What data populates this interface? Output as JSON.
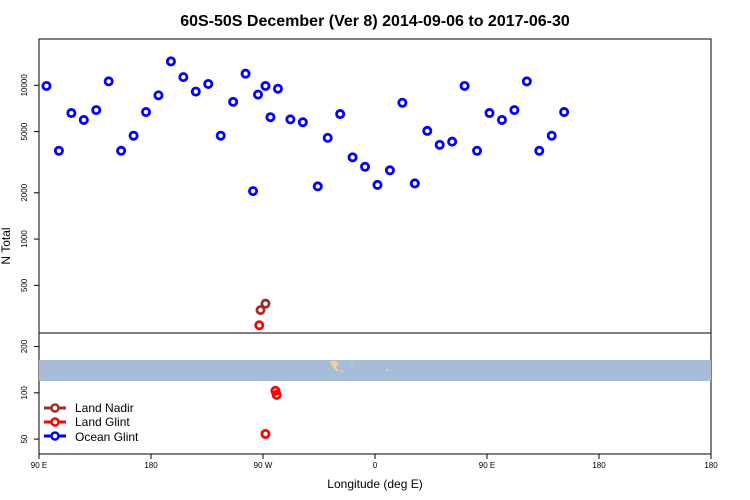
{
  "chart_data": {
    "type": "scatter",
    "title": "60S-50S December (Ver 8)   2014-09-06 to 2017-06-30",
    "xlabel": "Longitude (deg E)",
    "ylabel": "N Total",
    "xlim": [
      -90,
      180
    ],
    "ylim": [
      40,
      20000
    ],
    "y_scale": "log",
    "grid": false,
    "legend_position": "bottom-left",
    "x_ticks": [
      {
        "value": -90,
        "label": "90 E"
      },
      {
        "value": -45,
        "label": "180"
      },
      {
        "value": 0,
        "label": "90 W"
      },
      {
        "value": 45,
        "label": "0"
      },
      {
        "value": 90,
        "label": "90 E"
      },
      {
        "value": 135,
        "label": "180"
      }
    ],
    "y_ticks_upper": [
      {
        "value": 10000,
        "label": "10000"
      },
      {
        "value": 5000,
        "label": "5000"
      },
      {
        "value": 2000,
        "label": "2000"
      },
      {
        "value": 1000,
        "label": "1000"
      },
      {
        "value": 500,
        "label": "500"
      }
    ],
    "y_ticks_lower": [
      {
        "value": 200,
        "label": "200"
      },
      {
        "value": 100,
        "label": "100"
      },
      {
        "value": 50,
        "label": "50"
      }
    ],
    "series": [
      {
        "name": "Land Nadir",
        "color": "#a52a2a",
        "points": [
          {
            "x": -1,
            "y": 345
          },
          {
            "x": 1,
            "y": 380
          }
        ]
      },
      {
        "name": "Land Glint",
        "color": "#ff0000",
        "points": [
          {
            "x": -1.5,
            "y": 275
          },
          {
            "x": 5,
            "y": 103
          },
          {
            "x": 5.5,
            "y": 97
          },
          {
            "x": 1,
            "y": 54
          }
        ]
      },
      {
        "name": "Ocean Glint",
        "color": "#0000ff",
        "points": [
          {
            "x": -87,
            "y": 9900
          },
          {
            "x": -82,
            "y": 3750
          },
          {
            "x": -77,
            "y": 6600
          },
          {
            "x": -72,
            "y": 5950
          },
          {
            "x": -67,
            "y": 6900
          },
          {
            "x": -62,
            "y": 10600
          },
          {
            "x": -57,
            "y": 3750
          },
          {
            "x": -52,
            "y": 4700
          },
          {
            "x": -47,
            "y": 6700
          },
          {
            "x": -42,
            "y": 8600
          },
          {
            "x": -37,
            "y": 14300
          },
          {
            "x": -32,
            "y": 11300
          },
          {
            "x": -27,
            "y": 9100
          },
          {
            "x": -22,
            "y": 10200
          },
          {
            "x": -17,
            "y": 4700
          },
          {
            "x": -12,
            "y": 7800
          },
          {
            "x": -7,
            "y": 11900
          },
          {
            "x": -2,
            "y": 8700
          },
          {
            "x": 3,
            "y": 6200
          },
          {
            "x": -4,
            "y": 2050
          },
          {
            "x": 1,
            "y": 9900
          },
          {
            "x": 6,
            "y": 9500
          },
          {
            "x": 11,
            "y": 6000
          },
          {
            "x": 16,
            "y": 5750
          },
          {
            "x": 22,
            "y": 2200
          },
          {
            "x": 26,
            "y": 4550
          },
          {
            "x": 31,
            "y": 6500
          },
          {
            "x": 36,
            "y": 3400
          },
          {
            "x": 41,
            "y": 2950
          },
          {
            "x": 46,
            "y": 2250
          },
          {
            "x": 51,
            "y": 2800
          },
          {
            "x": 56,
            "y": 7700
          },
          {
            "x": 61,
            "y": 2300
          },
          {
            "x": 66,
            "y": 5050
          },
          {
            "x": 71,
            "y": 4100
          },
          {
            "x": 76,
            "y": 4300
          },
          {
            "x": 81,
            "y": 9900
          },
          {
            "x": 86,
            "y": 3750
          },
          {
            "x": 91,
            "y": 6600
          },
          {
            "x": 96,
            "y": 5950
          },
          {
            "x": 101,
            "y": 6900
          },
          {
            "x": 106,
            "y": 10600
          },
          {
            "x": 111,
            "y": 3750
          },
          {
            "x": 116,
            "y": 4700
          },
          {
            "x": 121,
            "y": 6700
          }
        ]
      }
    ]
  }
}
